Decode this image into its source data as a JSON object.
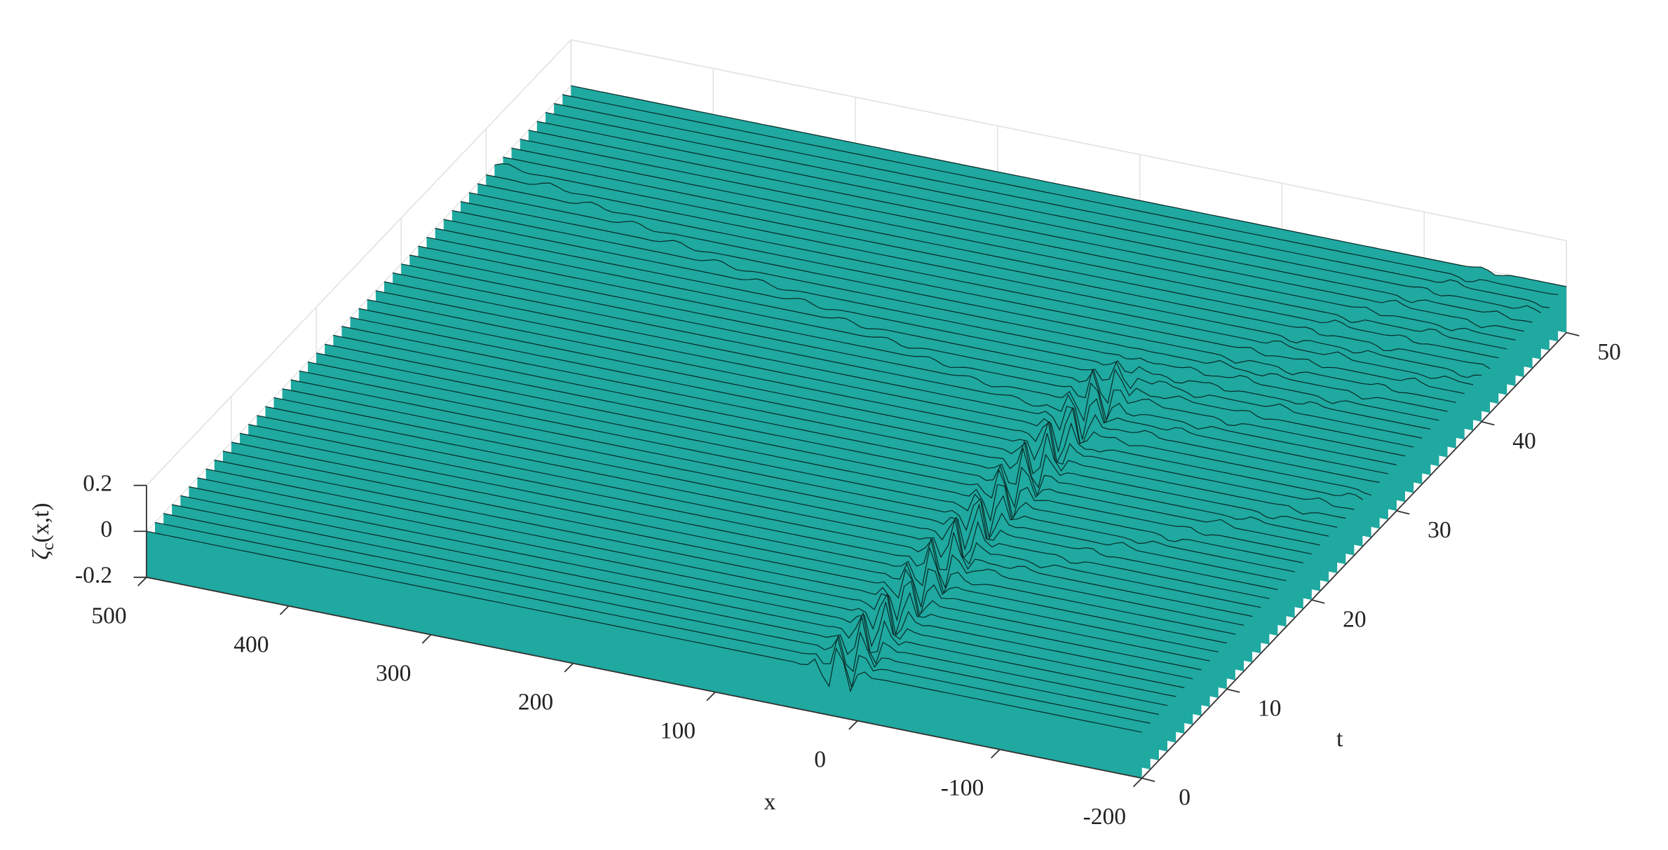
{
  "chart_data": {
    "type": "surface",
    "xlabel": "x",
    "ylabel": "t",
    "zlabel": {
      "symbol": "ζ",
      "subscript": "c",
      "args": "(x,t)"
    },
    "xlim": [
      -200,
      500
    ],
    "xticks": [
      -200,
      -100,
      0,
      100,
      200,
      300,
      400,
      500
    ],
    "ylim": [
      0,
      50
    ],
    "yticks": [
      0,
      10,
      20,
      30,
      40,
      50
    ],
    "zlim": [
      -0.2,
      0.2
    ],
    "zticks": [
      -0.2,
      0,
      0.2
    ],
    "color": "#1fa9a0",
    "grid": true
  }
}
